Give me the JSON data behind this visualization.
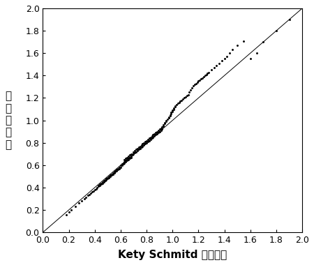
{
  "title": "",
  "xlabel": "Kety Schmitd 单室模型",
  "ylabel": "本\n发\n明\n方\n法",
  "xlim": [
    0,
    2
  ],
  "ylim": [
    0,
    2
  ],
  "xticks": [
    0,
    0.2,
    0.4,
    0.6,
    0.8,
    1.0,
    1.2,
    1.4,
    1.6,
    1.8,
    2.0
  ],
  "yticks": [
    0,
    0.2,
    0.4,
    0.6,
    0.8,
    1.0,
    1.2,
    1.4,
    1.6,
    1.8,
    2.0
  ],
  "line_color": "#000000",
  "dot_color": "#000000",
  "background_color": "#ffffff",
  "dot_size": 5,
  "scatter_x": [
    0.18,
    0.2,
    0.22,
    0.25,
    0.28,
    0.3,
    0.32,
    0.33,
    0.35,
    0.36,
    0.37,
    0.38,
    0.39,
    0.4,
    0.41,
    0.42,
    0.43,
    0.43,
    0.44,
    0.44,
    0.45,
    0.45,
    0.46,
    0.46,
    0.47,
    0.47,
    0.48,
    0.48,
    0.49,
    0.49,
    0.5,
    0.5,
    0.51,
    0.51,
    0.52,
    0.52,
    0.53,
    0.53,
    0.54,
    0.54,
    0.55,
    0.55,
    0.56,
    0.56,
    0.57,
    0.57,
    0.58,
    0.58,
    0.59,
    0.59,
    0.6,
    0.6,
    0.61,
    0.61,
    0.62,
    0.62,
    0.63,
    0.63,
    0.63,
    0.64,
    0.64,
    0.64,
    0.65,
    0.65,
    0.65,
    0.66,
    0.66,
    0.66,
    0.67,
    0.67,
    0.67,
    0.68,
    0.68,
    0.68,
    0.69,
    0.69,
    0.7,
    0.7,
    0.71,
    0.71,
    0.72,
    0.72,
    0.73,
    0.73,
    0.74,
    0.74,
    0.75,
    0.75,
    0.76,
    0.76,
    0.77,
    0.77,
    0.78,
    0.78,
    0.79,
    0.79,
    0.8,
    0.8,
    0.81,
    0.81,
    0.82,
    0.82,
    0.83,
    0.83,
    0.84,
    0.84,
    0.85,
    0.85,
    0.86,
    0.86,
    0.87,
    0.87,
    0.88,
    0.88,
    0.89,
    0.89,
    0.9,
    0.9,
    0.91,
    0.91,
    0.92,
    0.92,
    0.93,
    0.93,
    0.94,
    0.94,
    0.95,
    0.95,
    0.96,
    0.97,
    0.97,
    0.98,
    0.98,
    0.99,
    0.99,
    1.0,
    1.0,
    1.01,
    1.01,
    1.02,
    1.02,
    1.03,
    1.04,
    1.05,
    1.06,
    1.07,
    1.08,
    1.09,
    1.1,
    1.11,
    1.12,
    1.13,
    1.14,
    1.15,
    1.16,
    1.17,
    1.18,
    1.19,
    1.2,
    1.21,
    1.22,
    1.23,
    1.24,
    1.25,
    1.26,
    1.27,
    1.28,
    1.3,
    1.32,
    1.34,
    1.36,
    1.38,
    1.4,
    1.42,
    1.44,
    1.46,
    1.5,
    1.55,
    1.6,
    1.65,
    1.7,
    1.8,
    1.9
  ],
  "scatter_y": [
    0.16,
    0.18,
    0.2,
    0.23,
    0.26,
    0.28,
    0.3,
    0.31,
    0.33,
    0.34,
    0.35,
    0.36,
    0.37,
    0.38,
    0.39,
    0.4,
    0.41,
    0.42,
    0.42,
    0.43,
    0.43,
    0.44,
    0.44,
    0.45,
    0.45,
    0.46,
    0.46,
    0.47,
    0.47,
    0.48,
    0.48,
    0.49,
    0.49,
    0.5,
    0.5,
    0.51,
    0.51,
    0.52,
    0.52,
    0.53,
    0.53,
    0.54,
    0.54,
    0.55,
    0.55,
    0.56,
    0.56,
    0.57,
    0.57,
    0.58,
    0.58,
    0.6,
    0.6,
    0.61,
    0.61,
    0.62,
    0.62,
    0.63,
    0.65,
    0.63,
    0.64,
    0.66,
    0.64,
    0.65,
    0.67,
    0.65,
    0.66,
    0.68,
    0.66,
    0.67,
    0.69,
    0.67,
    0.68,
    0.7,
    0.69,
    0.7,
    0.7,
    0.72,
    0.71,
    0.73,
    0.72,
    0.74,
    0.73,
    0.75,
    0.74,
    0.76,
    0.75,
    0.77,
    0.76,
    0.78,
    0.77,
    0.79,
    0.78,
    0.8,
    0.79,
    0.81,
    0.8,
    0.82,
    0.81,
    0.83,
    0.82,
    0.84,
    0.83,
    0.85,
    0.84,
    0.86,
    0.85,
    0.87,
    0.86,
    0.88,
    0.87,
    0.89,
    0.88,
    0.9,
    0.89,
    0.91,
    0.9,
    0.92,
    0.91,
    0.93,
    0.92,
    0.94,
    0.95,
    0.96,
    0.97,
    0.98,
    0.99,
    1.0,
    1.01,
    1.02,
    1.03,
    1.04,
    1.05,
    1.06,
    1.07,
    1.08,
    1.09,
    1.1,
    1.11,
    1.12,
    1.13,
    1.14,
    1.15,
    1.16,
    1.17,
    1.18,
    1.19,
    1.2,
    1.21,
    1.22,
    1.23,
    1.25,
    1.27,
    1.29,
    1.31,
    1.32,
    1.33,
    1.34,
    1.35,
    1.36,
    1.37,
    1.38,
    1.39,
    1.4,
    1.41,
    1.42,
    1.43,
    1.45,
    1.47,
    1.49,
    1.51,
    1.53,
    1.55,
    1.57,
    1.6,
    1.63,
    1.67,
    1.71,
    1.55,
    1.6,
    1.7,
    1.8,
    1.9
  ]
}
